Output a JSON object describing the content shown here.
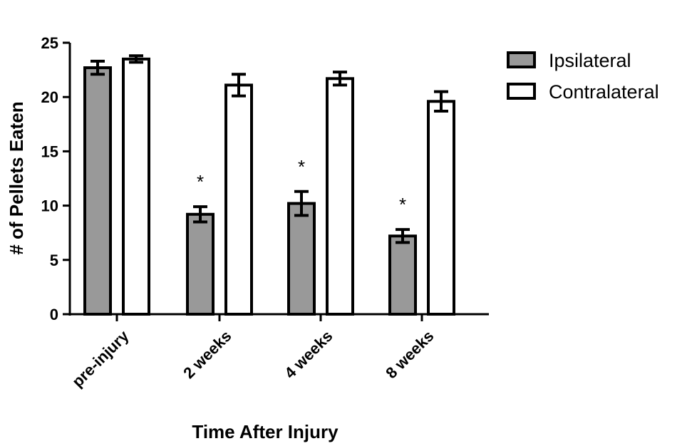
{
  "chart_data": {
    "type": "bar",
    "title": "",
    "xlabel": "Time After Injury",
    "ylabel": "# of Pellets Eaten",
    "ylim": [
      0,
      25
    ],
    "yticks": [
      "0",
      "5",
      "10",
      "15",
      "20",
      "25"
    ],
    "categories": [
      "pre-injury",
      "2 weeks",
      "4 weeks",
      "8 weeks"
    ],
    "series": [
      {
        "name": "Ipsilateral",
        "color": "#999999",
        "values": [
          22.7,
          9.2,
          10.2,
          7.2
        ],
        "errors": [
          0.6,
          0.7,
          1.1,
          0.6
        ]
      },
      {
        "name": "Contralateral",
        "color": "#ffffff",
        "values": [
          23.5,
          21.1,
          21.7,
          19.6
        ],
        "errors": [
          0.3,
          1.0,
          0.6,
          0.9
        ]
      }
    ],
    "annotations": [
      {
        "category": "2 weeks",
        "series": "Ipsilateral",
        "text": "*"
      },
      {
        "category": "4 weeks",
        "series": "Ipsilateral",
        "text": "*"
      },
      {
        "category": "8 weeks",
        "series": "Ipsilateral",
        "text": "*"
      }
    ],
    "legend": "top-right",
    "grid": false
  }
}
